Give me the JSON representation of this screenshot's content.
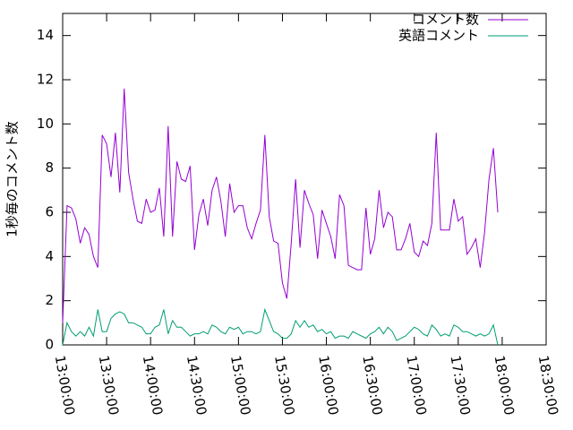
{
  "chart_data": {
    "type": "line",
    "y_label": "1秒毎のコメント数",
    "x": [
      "13:00:00",
      "13:03:00",
      "13:06:00",
      "13:09:00",
      "13:12:00",
      "13:15:00",
      "13:18:00",
      "13:21:00",
      "13:24:00",
      "13:27:00",
      "13:30:00",
      "13:33:00",
      "13:36:00",
      "13:39:00",
      "13:42:00",
      "13:45:00",
      "13:48:00",
      "13:51:00",
      "13:54:00",
      "13:57:00",
      "14:00:00",
      "14:03:00",
      "14:06:00",
      "14:09:00",
      "14:12:00",
      "14:15:00",
      "14:18:00",
      "14:21:00",
      "14:24:00",
      "14:27:00",
      "14:30:00",
      "14:33:00",
      "14:36:00",
      "14:39:00",
      "14:42:00",
      "14:45:00",
      "14:48:00",
      "14:51:00",
      "14:54:00",
      "14:57:00",
      "15:00:00",
      "15:03:00",
      "15:06:00",
      "15:09:00",
      "15:12:00",
      "15:15:00",
      "15:18:00",
      "15:21:00",
      "15:24:00",
      "15:27:00",
      "15:30:00",
      "15:33:00",
      "15:36:00",
      "15:39:00",
      "15:42:00",
      "15:45:00",
      "15:48:00",
      "15:51:00",
      "15:54:00",
      "15:57:00",
      "16:00:00",
      "16:03:00",
      "16:06:00",
      "16:09:00",
      "16:12:00",
      "16:15:00",
      "16:18:00",
      "16:21:00",
      "16:24:00",
      "16:27:00",
      "16:30:00",
      "16:33:00",
      "16:36:00",
      "16:39:00",
      "16:42:00",
      "16:45:00",
      "16:48:00",
      "16:51:00",
      "16:54:00",
      "16:57:00",
      "17:00:00",
      "17:03:00",
      "17:06:00",
      "17:09:00",
      "17:12:00",
      "17:15:00",
      "17:18:00",
      "17:21:00",
      "17:24:00",
      "17:27:00",
      "17:30:00",
      "17:33:00",
      "17:36:00",
      "17:39:00",
      "17:42:00",
      "17:45:00",
      "17:48:00",
      "17:51:00",
      "17:54:00",
      "17:57:00"
    ],
    "series": [
      {
        "name": "コメント数",
        "color": "#9400d3",
        "values": [
          1.0,
          6.3,
          6.2,
          5.7,
          4.6,
          5.3,
          5.0,
          4.0,
          3.5,
          9.5,
          9.1,
          7.6,
          9.6,
          6.9,
          11.6,
          7.8,
          6.6,
          5.6,
          5.5,
          6.6,
          6.0,
          6.1,
          7.1,
          4.9,
          9.9,
          4.9,
          8.3,
          7.5,
          7.4,
          8.1,
          4.3,
          5.9,
          6.6,
          5.4,
          7.0,
          7.6,
          6.5,
          4.9,
          7.3,
          6.0,
          6.3,
          6.3,
          5.3,
          4.8,
          5.5,
          6.1,
          9.5,
          5.8,
          4.7,
          4.6,
          2.8,
          2.1,
          4.6,
          7.5,
          4.4,
          7.0,
          6.4,
          5.9,
          3.9,
          6.1,
          5.5,
          4.9,
          3.9,
          6.8,
          6.3,
          3.6,
          3.5,
          3.4,
          3.4,
          6.2,
          4.1,
          4.8,
          7.0,
          5.3,
          6.0,
          5.8,
          4.3,
          4.3,
          4.8,
          5.5,
          4.2,
          4.0,
          4.7,
          4.5,
          5.5,
          9.6,
          5.2,
          5.2,
          5.2,
          6.6,
          5.6,
          5.8,
          4.1,
          4.4,
          4.8,
          3.5,
          5.1,
          7.5,
          8.9,
          6.0
        ]
      },
      {
        "name": "英語コメント",
        "color": "#009e73",
        "values": [
          0,
          1.0,
          0.6,
          0.4,
          0.6,
          0.4,
          0.8,
          0.4,
          1.6,
          0.6,
          0.6,
          1.2,
          1.4,
          1.5,
          1.4,
          1.0,
          1.0,
          0.9,
          0.8,
          0.5,
          0.5,
          0.8,
          0.9,
          1.6,
          0.5,
          1.1,
          0.8,
          0.8,
          0.6,
          0.4,
          0.5,
          0.5,
          0.6,
          0.5,
          0.9,
          0.8,
          0.6,
          0.5,
          0.8,
          0.7,
          0.8,
          0.5,
          0.6,
          0.6,
          0.5,
          0.6,
          1.6,
          1.1,
          0.6,
          0.5,
          0.3,
          0.3,
          0.5,
          1.1,
          0.8,
          1.1,
          0.8,
          0.9,
          0.6,
          0.7,
          0.5,
          0.6,
          0.3,
          0.4,
          0.4,
          0.3,
          0.6,
          0.5,
          0.4,
          0.3,
          0.5,
          0.6,
          0.8,
          0.5,
          0.8,
          0.6,
          0.2,
          0.3,
          0.4,
          0.6,
          0.8,
          0.7,
          0.5,
          0.4,
          0.9,
          0.7,
          0.4,
          0.5,
          0.4,
          0.9,
          0.8,
          0.6,
          0.6,
          0.5,
          0.4,
          0.5,
          0.4,
          0.5,
          0.9,
          0.0
        ]
      }
    ],
    "xlim": [
      "13:00:00",
      "18:30:00"
    ],
    "xticks": [
      "13:00:00",
      "13:30:00",
      "14:00:00",
      "14:30:00",
      "15:00:00",
      "15:30:00",
      "16:00:00",
      "16:30:00",
      "17:00:00",
      "17:30:00",
      "18:00:00",
      "18:30:00"
    ],
    "ylim": [
      0,
      15
    ],
    "yticks": [
      0,
      2,
      4,
      6,
      8,
      10,
      12,
      14
    ],
    "legend": "top-right"
  }
}
